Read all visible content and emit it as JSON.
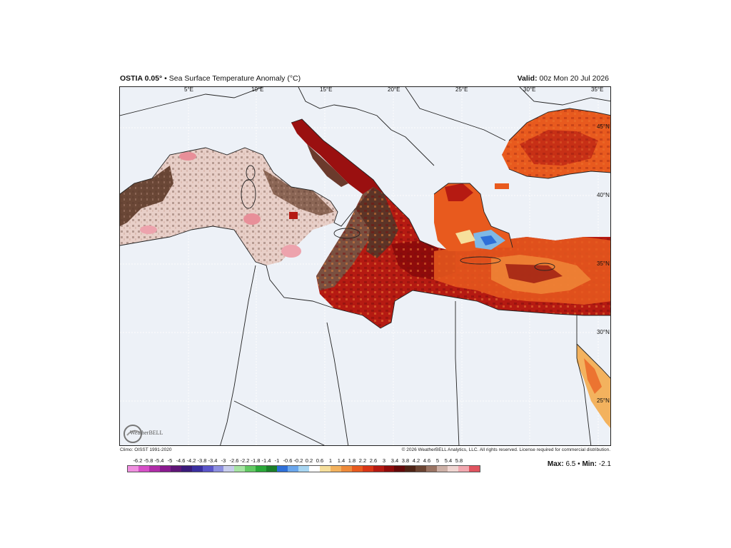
{
  "header": {
    "model": "OSTIA 0.05°",
    "separator": "•",
    "product": "Sea Surface Temperature Anomaly (°C)",
    "valid_label": "Valid:",
    "valid_time": "00z Mon 20 Jul 2026"
  },
  "map": {
    "region": "Mediterranean Sea",
    "lon_labels": [
      "5°E",
      "10°E",
      "15°E",
      "20°E",
      "25°E",
      "30°E",
      "35°E"
    ],
    "lat_labels": [
      "45°N",
      "40°N",
      "35°N",
      "30°N",
      "25°N"
    ]
  },
  "footer": {
    "climo": "Climo: OISST 1991-2020",
    "copyright": "© 2026 WeatherBELL Analytics, LLC. All rights reserved. License required for commercial distribution.",
    "logo_text": "WeatherBELL"
  },
  "legend": {
    "labels": [
      "-6.2",
      "-5.8",
      "-5.4",
      "-5",
      "-4.6",
      "-4.2",
      "-3.8",
      "-3.4",
      "-3",
      "-2.6",
      "-2.2",
      "-1.8",
      "-1.4",
      "-1",
      "-0.6",
      "-0.2",
      "0.2",
      "0.6",
      "1",
      "1.4",
      "1.8",
      "2.2",
      "2.6",
      "3",
      "3.4",
      "3.8",
      "4.2",
      "4.6",
      "5",
      "5.4",
      "5.8"
    ],
    "colors": [
      "#f08fe0",
      "#d64fc7",
      "#b02ca8",
      "#8a1a8f",
      "#5f1577",
      "#3a1a7a",
      "#3a2fa0",
      "#5a55c9",
      "#8d8fe0",
      "#c8cdec",
      "#a6e4a3",
      "#62c963",
      "#2aa838",
      "#1b7f2a",
      "#2e6fd8",
      "#6aa6ec",
      "#a8d6f2",
      "#ffffff",
      "#f6df9c",
      "#f3b25e",
      "#ee8a3a",
      "#e85a1e",
      "#d83516",
      "#b51a12",
      "#8f0b0b",
      "#640909",
      "#4e2315",
      "#6b4432",
      "#9a7463",
      "#cdb0a6",
      "#f0d6d2",
      "#f2a8b0",
      "#e0535f"
    ],
    "max_label": "Max:",
    "max_value": "6.5",
    "min_label": "Min:",
    "min_value": "-2.1"
  }
}
